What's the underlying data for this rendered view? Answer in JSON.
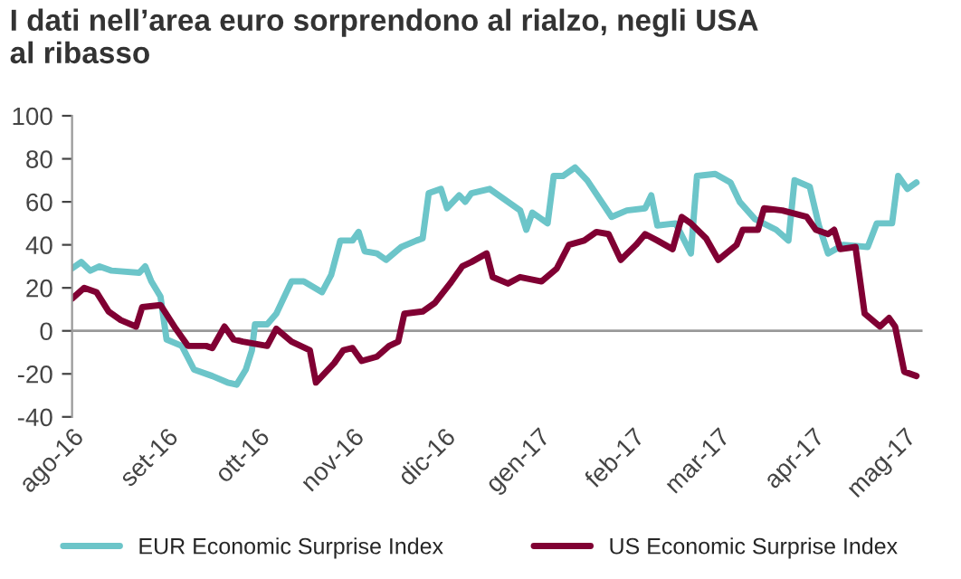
{
  "chart_data": {
    "type": "line",
    "title": "I dati nell’area euro sorprendono al rialzo, negli USA\nal ribasso",
    "xlim": [
      "2016-08-01",
      "2017-05-07"
    ],
    "ylim": [
      -40,
      100
    ],
    "yticks": [
      -40,
      -20,
      0,
      20,
      40,
      60,
      80,
      100
    ],
    "xticks": [
      {
        "value": "2016-08-01",
        "label": "ago-16"
      },
      {
        "value": "2016-09-01",
        "label": "set-16"
      },
      {
        "value": "2016-10-01",
        "label": "ott-16"
      },
      {
        "value": "2016-11-01",
        "label": "nov-16"
      },
      {
        "value": "2016-12-01",
        "label": "dic-16"
      },
      {
        "value": "2017-01-01",
        "label": "gen-17"
      },
      {
        "value": "2017-02-01",
        "label": "feb-17"
      },
      {
        "value": "2017-03-01",
        "label": "mar-17"
      },
      {
        "value": "2017-04-01",
        "label": "apr-17"
      },
      {
        "value": "2017-05-01",
        "label": "mag-17"
      }
    ],
    "ref_lines": [
      {
        "axis": "y",
        "value": 0,
        "label": null,
        "color": "#999999"
      }
    ],
    "grid": false,
    "legend": "bottom",
    "marker": "none",
    "line_style": "solid",
    "series": [
      {
        "name": "EUR Economic Surprise Index",
        "color": "#6cc5c9",
        "x": [
          "2016-08-01",
          "2016-08-04",
          "2016-08-07",
          "2016-08-10",
          "2016-08-14",
          "2016-08-23",
          "2016-08-25",
          "2016-08-27",
          "2016-08-30",
          "2016-09-01",
          "2016-09-06",
          "2016-09-10",
          "2016-09-16",
          "2016-09-21",
          "2016-09-24",
          "2016-09-27",
          "2016-09-29",
          "2016-09-30",
          "2016-10-04",
          "2016-10-07",
          "2016-10-12",
          "2016-10-16",
          "2016-10-22",
          "2016-10-25",
          "2016-10-28",
          "2016-11-01",
          "2016-11-03",
          "2016-11-05",
          "2016-11-09",
          "2016-11-12",
          "2016-11-17",
          "2016-11-22",
          "2016-11-24",
          "2016-11-26",
          "2016-11-30",
          "2016-12-02",
          "2016-12-06",
          "2016-12-08",
          "2016-12-10",
          "2016-12-16",
          "2016-12-20",
          "2016-12-26",
          "2016-12-28",
          "2016-12-30",
          "2017-01-04",
          "2017-01-06",
          "2017-01-09",
          "2017-01-13",
          "2017-01-17",
          "2017-01-25",
          "2017-01-30",
          "2017-02-05",
          "2017-02-07",
          "2017-02-09",
          "2017-02-15",
          "2017-02-20",
          "2017-02-22",
          "2017-02-28",
          "2017-03-05",
          "2017-03-08",
          "2017-03-13",
          "2017-03-20",
          "2017-03-24",
          "2017-03-26",
          "2017-03-31",
          "2017-04-03",
          "2017-04-06",
          "2017-04-11",
          "2017-04-19",
          "2017-04-22",
          "2017-04-27",
          "2017-04-29",
          "2017-05-02",
          "2017-05-05"
        ],
        "values": [
          29,
          32,
          28,
          30,
          28,
          27,
          30,
          23,
          16,
          -4,
          -7,
          -18,
          -21,
          -24,
          -25,
          -18,
          -9,
          3,
          3,
          8,
          23,
          23,
          18,
          26,
          42,
          42,
          46,
          37,
          36,
          33,
          39,
          42,
          43,
          64,
          66,
          57,
          63,
          60,
          64,
          66,
          62,
          56,
          47,
          55,
          50,
          72,
          72,
          76,
          70,
          53,
          56,
          57,
          63,
          49,
          50,
          36,
          72,
          73,
          69,
          60,
          52,
          47,
          42,
          70,
          67,
          49,
          36,
          40,
          39,
          50,
          50,
          72,
          66,
          69
        ]
      },
      {
        "name": "US Economic Surprise Index",
        "color": "#800033",
        "x": [
          "2016-08-01",
          "2016-08-05",
          "2016-08-09",
          "2016-08-13",
          "2016-08-17",
          "2016-08-22",
          "2016-08-24",
          "2016-08-30",
          "2016-09-04",
          "2016-09-08",
          "2016-09-14",
          "2016-09-16",
          "2016-09-20",
          "2016-09-23",
          "2016-09-26",
          "2016-10-04",
          "2016-10-07",
          "2016-10-12",
          "2016-10-18",
          "2016-10-20",
          "2016-10-26",
          "2016-10-29",
          "2016-11-01",
          "2016-11-04",
          "2016-11-09",
          "2016-11-13",
          "2016-11-16",
          "2016-11-18",
          "2016-11-24",
          "2016-11-28",
          "2016-12-03",
          "2016-12-07",
          "2016-12-10",
          "2016-12-15",
          "2016-12-17",
          "2016-12-22",
          "2016-12-26",
          "2017-01-02",
          "2017-01-07",
          "2017-01-11",
          "2017-01-16",
          "2017-01-20",
          "2017-01-24",
          "2017-01-28",
          "2017-02-02",
          "2017-02-05",
          "2017-02-09",
          "2017-02-14",
          "2017-02-17",
          "2017-02-20",
          "2017-02-25",
          "2017-03-01",
          "2017-03-07",
          "2017-03-09",
          "2017-03-14",
          "2017-03-16",
          "2017-03-22",
          "2017-03-30",
          "2017-04-02",
          "2017-04-06",
          "2017-04-08",
          "2017-04-10",
          "2017-04-15",
          "2017-04-18",
          "2017-04-23",
          "2017-04-26",
          "2017-04-28",
          "2017-05-01",
          "2017-05-05"
        ],
        "values": [
          15,
          20,
          18,
          9,
          5,
          2,
          11,
          12,
          1,
          -7,
          -7,
          -8,
          2,
          -4,
          -5,
          -7,
          1,
          -5,
          -9,
          -24,
          -15,
          -9,
          -8,
          -14,
          -12,
          -7,
          -5,
          8,
          9,
          13,
          22,
          30,
          32,
          36,
          25,
          22,
          25,
          23,
          29,
          40,
          42,
          46,
          45,
          33,
          40,
          45,
          42,
          38,
          53,
          50,
          43,
          33,
          40,
          47,
          47,
          57,
          56,
          53,
          47,
          45,
          47,
          38,
          39,
          8,
          2,
          6,
          2,
          -19,
          -21
        ]
      }
    ]
  }
}
